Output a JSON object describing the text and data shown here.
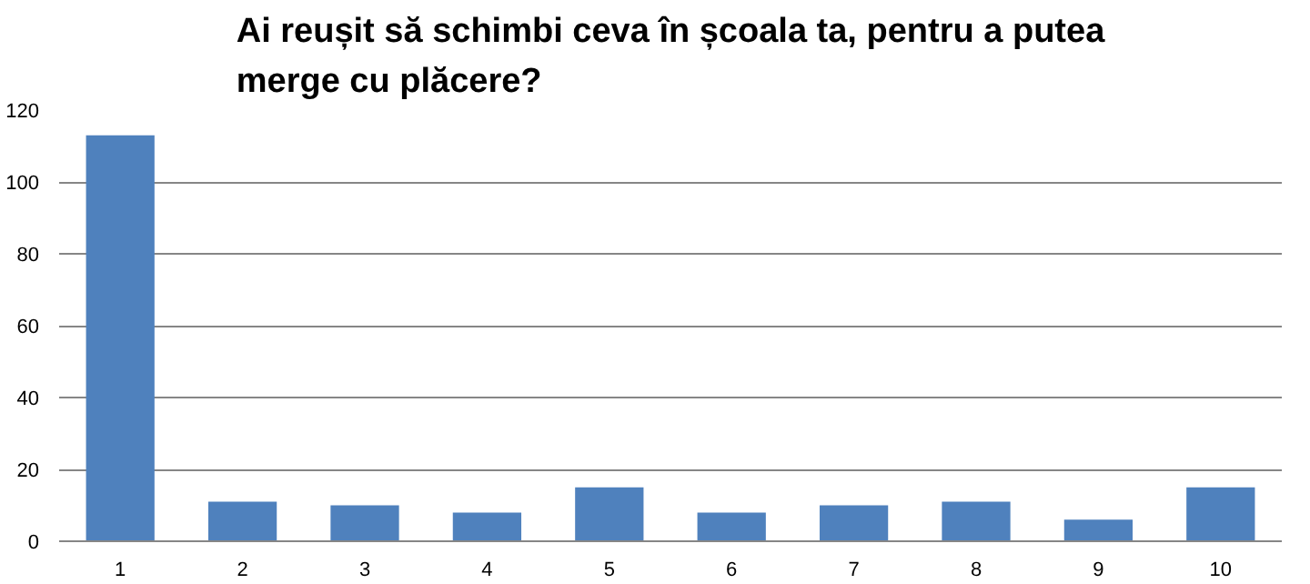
{
  "chart_data": {
    "type": "bar",
    "title": "Ai reușit să schimbi ceva în școala ta, pentru a putea\nmerge cu plăcere?",
    "categories": [
      "1",
      "2",
      "3",
      "4",
      "5",
      "6",
      "7",
      "8",
      "9",
      "10"
    ],
    "values": [
      113,
      11,
      10,
      8,
      15,
      8,
      10,
      11,
      6,
      15
    ],
    "color": "#4f81bd",
    "ylim": [
      0,
      120
    ],
    "yticks": [
      0,
      20,
      40,
      60,
      80,
      100,
      120
    ],
    "grid": "y"
  }
}
